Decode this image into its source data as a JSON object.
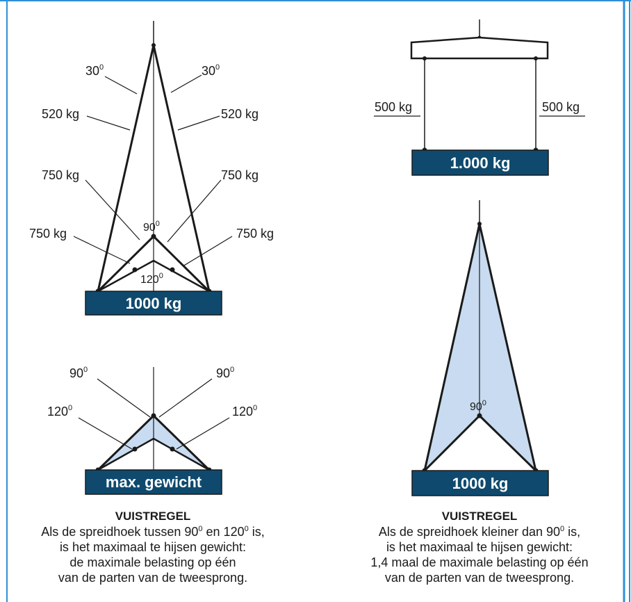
{
  "colors": {
    "accent_navy": "#0f4a6e",
    "fill_light_blue": "#c8dbf0",
    "frame_blue": "#2f8fd6",
    "line": "#1a1a1a"
  },
  "diagram_top_left": {
    "load_label": "1000 kg",
    "angle_30_left": "30",
    "angle_30_right": "30",
    "angle_90": "90",
    "angle_120": "120",
    "force_520_left": "520 kg",
    "force_520_right": "520 kg",
    "force_750_upper_left": "750 kg",
    "force_750_upper_right": "750 kg",
    "force_750_lower_left": "750 kg",
    "force_750_lower_right": "750 kg",
    "degree_mark": "0"
  },
  "diagram_top_right": {
    "load_label": "1.000 kg",
    "force_left": "500 kg",
    "force_right": "500 kg"
  },
  "diagram_bottom_left": {
    "load_label": "max. gewicht",
    "angle_90_left": "90",
    "angle_90_right": "90",
    "angle_120_left": "120",
    "angle_120_right": "120",
    "degree_mark": "0"
  },
  "diagram_bottom_right": {
    "load_label": "1000 kg",
    "angle_90": "90",
    "degree_mark": "0"
  },
  "caption_left": {
    "title": "VUISTREGEL",
    "line1_a": "Als de spreidhoek tussen 90",
    "line1_b": " en 120",
    "line1_c": " is,",
    "line2": "is het maximaal te hijsen gewicht:",
    "line3": "de maximale belasting op één",
    "line4": "van de parten van de tweesprong.",
    "degree_mark": "0"
  },
  "caption_right": {
    "title": "VUISTREGEL",
    "line1_a": "Als de spreidhoek kleiner dan 90",
    "line1_b": " is,",
    "line2": "is het maximaal te hijsen gewicht:",
    "line3": "1,4 maal de maximale belasting op één",
    "line4": "van de parten van de tweesprong.",
    "degree_mark": "0"
  }
}
